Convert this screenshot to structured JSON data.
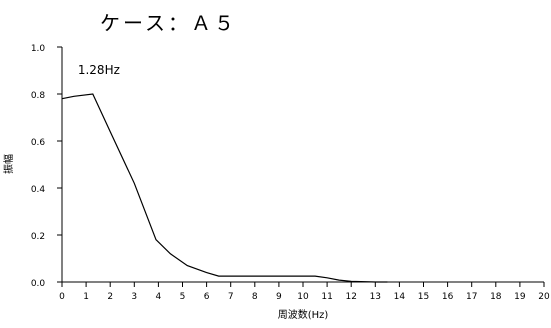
{
  "chart_data": {
    "type": "line",
    "title": "ケース：Ａ５",
    "xlabel": "周波数(Hz)",
    "ylabel": "振幅",
    "xlim": [
      0,
      20
    ],
    "ylim": [
      0,
      1.0
    ],
    "x_ticks": [
      "0",
      "1",
      "2",
      "3",
      "4",
      "5",
      "6",
      "7",
      "8",
      "9",
      "10",
      "11",
      "12",
      "13",
      "14",
      "15",
      "16",
      "17",
      "18",
      "19",
      "20"
    ],
    "y_ticks": [
      "0.0",
      "0.2",
      "0.4",
      "0.6",
      "0.8",
      "1.0"
    ],
    "grid": false,
    "legend": "none",
    "annotations": [
      {
        "text": "1.28Hz",
        "x": 1.28,
        "y": 0.8
      }
    ],
    "series": [
      {
        "color": "#000000",
        "x": [
          0,
          0.5,
          1.28,
          2.0,
          3.0,
          3.9,
          4.5,
          5.2,
          6.0,
          6.5,
          7.0,
          8.0,
          9.0,
          10.0,
          10.5,
          11.0,
          11.5,
          12.0,
          13.0,
          13.5
        ],
        "y": [
          0.78,
          0.79,
          0.8,
          0.64,
          0.42,
          0.18,
          0.12,
          0.07,
          0.04,
          0.025,
          0.025,
          0.025,
          0.025,
          0.025,
          0.025,
          0.018,
          0.008,
          0.003,
          0.0,
          0.0
        ]
      }
    ]
  }
}
